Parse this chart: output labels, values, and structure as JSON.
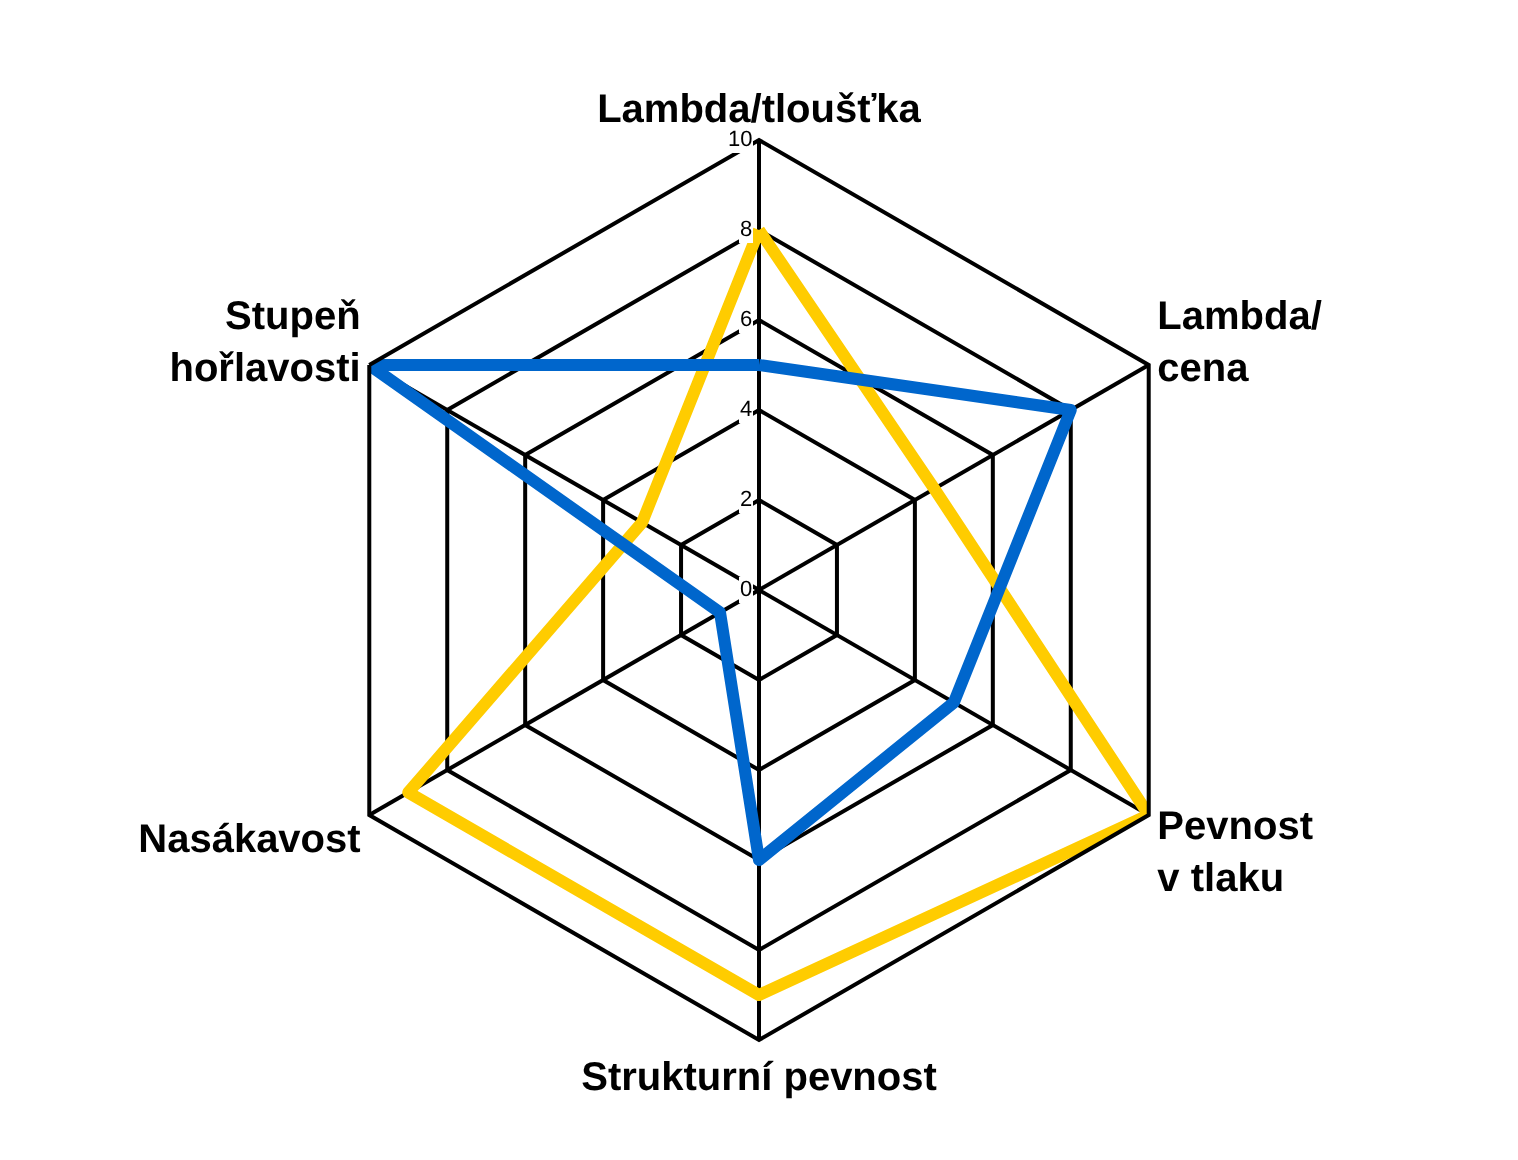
{
  "chart_data": {
    "type": "radar",
    "categories": [
      "Lambda/tloušťka",
      "Lambda/\ncena",
      "Pevnost\nv tlaku",
      "Strukturní pevnost",
      "Nasákavost",
      "Stupeň\nhořlavosti"
    ],
    "series": [
      {
        "color": "#ffcc00",
        "values": [
          8,
          4.5,
          10,
          9,
          9,
          3
        ]
      },
      {
        "color": "#0066cc",
        "values": [
          5,
          8,
          5,
          6,
          1,
          10
        ]
      }
    ],
    "ylim": [
      0,
      10
    ],
    "yticks": [
      0,
      2,
      4,
      6,
      8,
      10
    ],
    "grid": true
  }
}
